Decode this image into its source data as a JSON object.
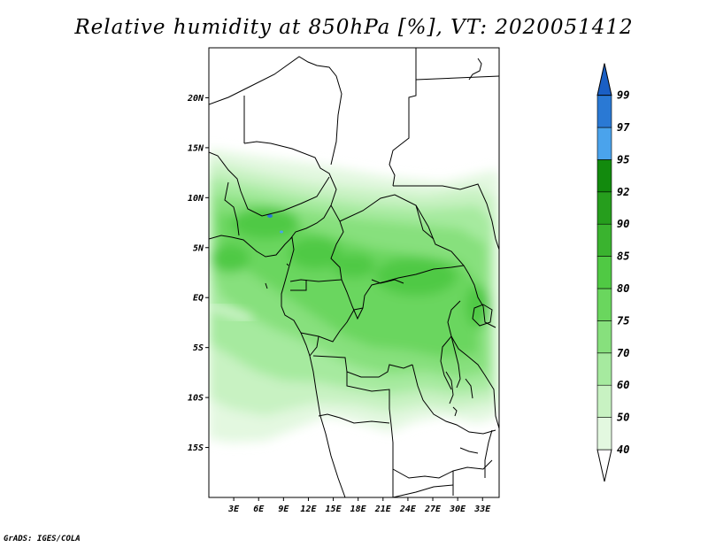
{
  "title": "Relative humidity at 850hPa [%], VT: 2020051412",
  "credit": "GrADS: IGES/COLA",
  "lat_labels": [
    "20N",
    "15N",
    "10N",
    "5N",
    "EQ",
    "5S",
    "10S",
    "15S"
  ],
  "lon_labels": [
    "3E",
    "6E",
    "9E",
    "12E",
    "15E",
    "18E",
    "21E",
    "24E",
    "27E",
    "30E",
    "33E"
  ],
  "colorbar": {
    "labels": [
      "40",
      "50",
      "60",
      "70",
      "75",
      "80",
      "85",
      "90",
      "92",
      "95",
      "97",
      "99"
    ],
    "colors": [
      "#ffffff",
      "#e3f8e0",
      "#c8f2c2",
      "#a6ea9f",
      "#87e07d",
      "#6ad65e",
      "#50c944",
      "#3ab32f",
      "#269e1d",
      "#128a0d",
      "#4aa3ec",
      "#2a79d4",
      "#1a5fc4"
    ]
  },
  "chart_data": {
    "type": "heatmap",
    "variable": "Relative humidity at 850hPa",
    "units": "%",
    "valid_time": "2020051412",
    "lon_range": [
      0,
      35
    ],
    "lat_range": [
      -20,
      25
    ],
    "lat_ticks": [
      20,
      15,
      10,
      5,
      0,
      -5,
      -10,
      -15
    ],
    "lon_ticks": [
      3,
      6,
      9,
      12,
      15,
      18,
      21,
      24,
      27,
      30,
      33
    ],
    "levels": [
      40,
      50,
      60,
      70,
      75,
      80,
      85,
      90,
      92,
      95,
      97,
      99
    ]
  }
}
